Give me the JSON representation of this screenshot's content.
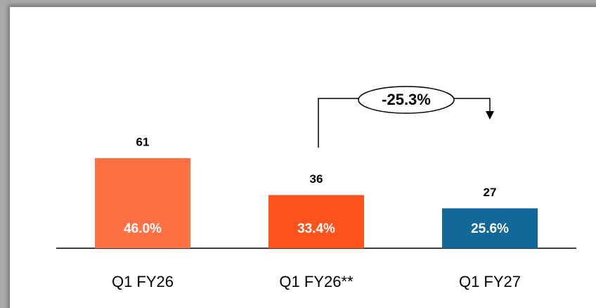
{
  "chart_data": {
    "type": "bar",
    "categories": [
      "Q1 FY26",
      "Q1 FY26**",
      "Q1 FY27"
    ],
    "values": [
      61,
      36,
      27
    ],
    "inner_labels": [
      "46.0%",
      "33.4%",
      "25.6%"
    ],
    "colors": [
      "#FF7043",
      "#FF531E",
      "#13689A"
    ],
    "annotation": "-25.3%"
  }
}
